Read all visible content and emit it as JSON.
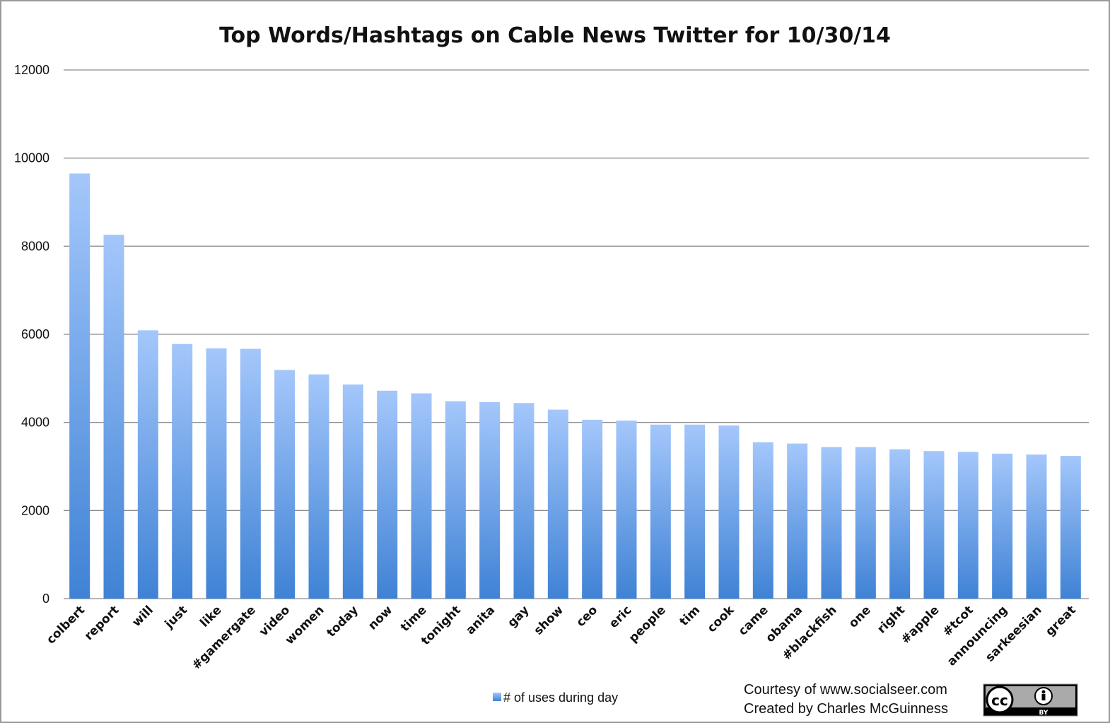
{
  "chart_data": {
    "type": "bar",
    "title": "Top Words/Hashtags on Cable News Twitter for 10/30/14",
    "xlabel": "",
    "ylabel": "",
    "ylim": [
      0,
      12000
    ],
    "yticks": [
      0,
      2000,
      4000,
      6000,
      8000,
      10000,
      12000
    ],
    "grid": true,
    "legend_position": "bottom",
    "categories": [
      "colbert",
      "report",
      "will",
      "just",
      "like",
      "#gamergate",
      "video",
      "women",
      "today",
      "now",
      "time",
      "tonight",
      "anita",
      "gay",
      "show",
      "ceo",
      "eric",
      "people",
      "tim",
      "cook",
      "came",
      "obama",
      "#blackfish",
      "one",
      "right",
      "#apple",
      "#tcot",
      "announcing",
      "sarkeesian",
      "great"
    ],
    "series": [
      {
        "name": "# of uses during day",
        "values": [
          9650,
          8260,
          6090,
          5780,
          5680,
          5670,
          5190,
          5090,
          4860,
          4720,
          4660,
          4480,
          4460,
          4440,
          4290,
          4060,
          4040,
          3950,
          3950,
          3930,
          3550,
          3520,
          3440,
          3440,
          3390,
          3350,
          3330,
          3290,
          3270,
          3240
        ]
      }
    ],
    "colors": {
      "bar_top": "#a4c7fb",
      "bar_bottom": "#3f82d5",
      "grid": "#8c8c8c"
    }
  },
  "credits": {
    "line1": "Courtesy of www.socialseer.com",
    "line2": "Created by Charles McGuinness"
  },
  "badge": {
    "icon": "cc-by-icon",
    "text": "BY"
  }
}
